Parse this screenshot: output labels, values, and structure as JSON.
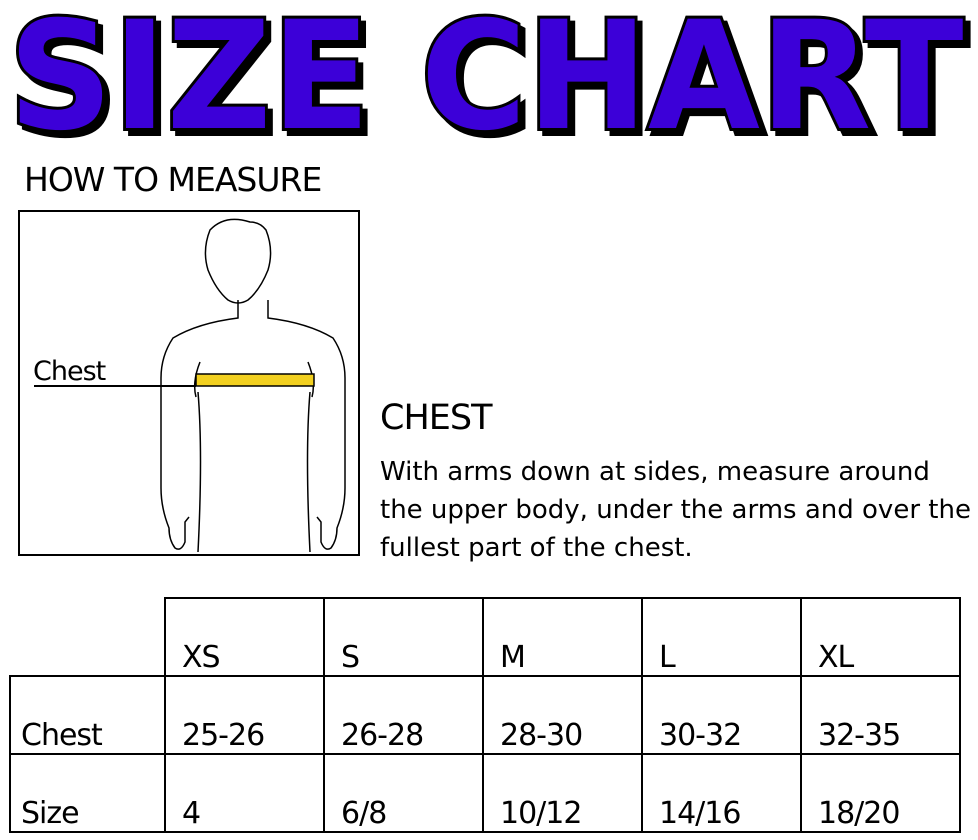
{
  "title": "SIZE CHART",
  "colors": {
    "title_fill": "#3c00d8",
    "tape": "#f2d020"
  },
  "how_to_measure": "HOW TO MEASURE",
  "figure": {
    "label": "Chest"
  },
  "chest": {
    "heading": "CHEST",
    "description": "With arms down at sides, measure around the upper body, under the arms and over the fullest part of the chest."
  },
  "table": {
    "sizes": [
      "XS",
      "S",
      "M",
      "L",
      "XL"
    ],
    "rows": [
      {
        "label": "Chest",
        "values": [
          "25-26",
          "26-28",
          "28-30",
          "30-32",
          "32-35"
        ]
      },
      {
        "label": "Size",
        "values": [
          "4",
          "6/8",
          "10/12",
          "14/16",
          "18/20"
        ]
      }
    ]
  }
}
